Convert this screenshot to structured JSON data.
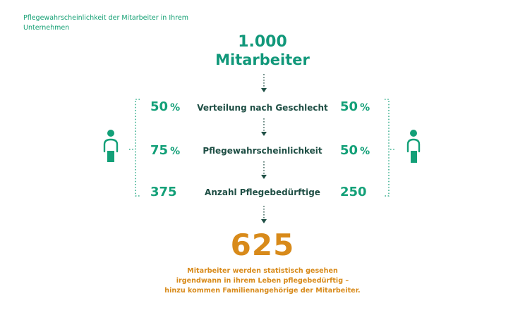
{
  "heading": "Pflegewahrscheinlichkeit der Mitarbeiter in Ihrem Unternehmen",
  "total": {
    "value": "1.000",
    "label": "Mitarbeiter"
  },
  "rows": [
    {
      "label": "Verteilung nach Geschlecht",
      "left": "50",
      "left_unit": "%",
      "right": "50",
      "right_unit": "%"
    },
    {
      "label": "Pflegewahrscheinlichkeit",
      "left": "75",
      "left_unit": "%",
      "right": "50",
      "right_unit": "%"
    },
    {
      "label": "Anzahl Pflegebedürftige",
      "left": "375",
      "left_unit": "",
      "right": "250",
      "right_unit": ""
    }
  ],
  "result": {
    "value": "625",
    "lines": [
      "Mitarbeiter werden statistisch gesehen",
      "irgendwann in ihrem Leben pflegebedürftig –",
      "hinzu kommen Familienangehörige der Mitarbeiter."
    ]
  },
  "colors": {
    "green": "#13a078",
    "dark_green": "#1f4f45",
    "orange": "#d88a1a"
  },
  "icons": {
    "left": "female-person-icon",
    "right": "male-person-icon"
  }
}
